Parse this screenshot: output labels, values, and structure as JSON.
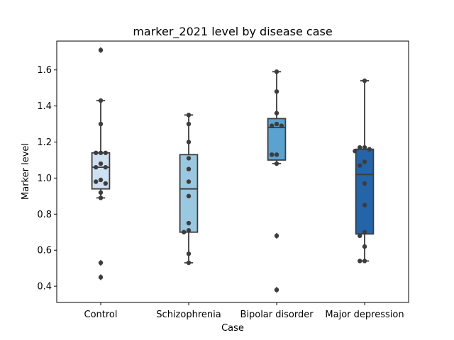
{
  "chart_data": {
    "type": "box",
    "title": "marker_2021 level by disease case",
    "xlabel": "Case",
    "ylabel": "Marker level",
    "ylim": [
      0.31,
      1.76
    ],
    "yticks": [
      "0.4",
      "0.6",
      "0.8",
      "1.0",
      "1.2",
      "1.4",
      "1.6"
    ],
    "grid": false,
    "categories": [
      "Control",
      "Schizophrenia",
      "Bipolar disorder",
      "Major depression"
    ],
    "box_colors": [
      "#cfe0f1",
      "#9ac8e0",
      "#5ba2d0",
      "#2464a9"
    ],
    "edge_color": "#3d3d3d",
    "point_color": "#3d3d3d",
    "boxes": [
      {
        "q1": 0.94,
        "median": 1.06,
        "q3": 1.14,
        "whisker_low": 0.89,
        "whisker_high": 1.43,
        "outliers": [
          1.71,
          0.53,
          0.45
        ],
        "points": [
          1.71,
          1.43,
          1.3,
          1.14,
          1.14,
          1.14,
          1.08,
          1.06,
          1.06,
          0.99,
          0.98,
          0.97,
          0.92,
          0.89,
          0.53,
          0.45
        ]
      },
      {
        "q1": 0.7,
        "median": 0.94,
        "q3": 1.13,
        "whisker_low": 0.53,
        "whisker_high": 1.35,
        "outliers": [],
        "points": [
          1.35,
          1.3,
          1.2,
          1.11,
          1.05,
          0.98,
          0.9,
          0.75,
          0.71,
          0.7,
          0.58,
          0.53
        ]
      },
      {
        "q1": 1.1,
        "median": 1.28,
        "q3": 1.33,
        "whisker_low": 1.08,
        "whisker_high": 1.59,
        "outliers": [
          0.68,
          0.38
        ],
        "points": [
          1.59,
          1.48,
          1.36,
          1.3,
          1.29,
          1.29,
          1.13,
          1.13,
          1.08,
          0.68,
          0.38
        ]
      },
      {
        "q1": 0.69,
        "median": 1.02,
        "q3": 1.16,
        "whisker_low": 0.54,
        "whisker_high": 1.54,
        "outliers": [],
        "points": [
          1.54,
          1.17,
          1.17,
          1.16,
          1.15,
          1.09,
          1.07,
          0.97,
          0.85,
          0.7,
          0.68,
          0.62,
          0.54,
          0.54
        ]
      }
    ]
  }
}
